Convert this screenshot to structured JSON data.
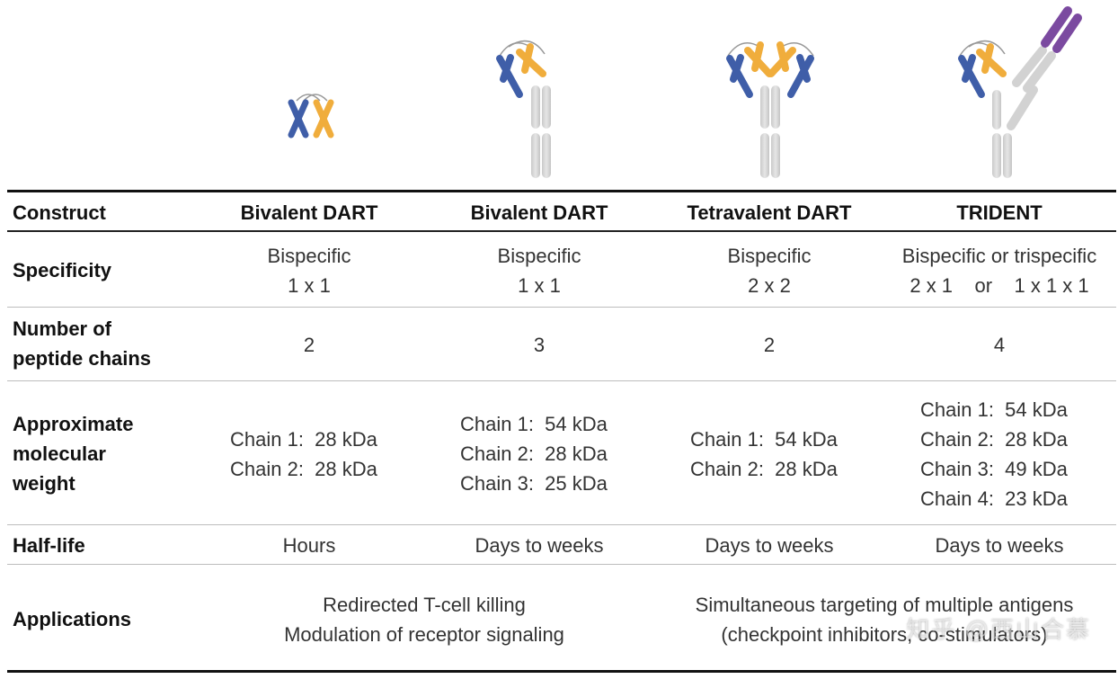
{
  "columns": {
    "row_header": "Construct",
    "col1": "Bivalent DART",
    "col2": "Bivalent DART",
    "col3": "Tetravalent DART",
    "col4": "TRIDENT"
  },
  "rows": {
    "specificity": {
      "label": "Specificity",
      "col1": [
        "Bispecific",
        "1 x 1"
      ],
      "col2": [
        "Bispecific",
        "1 x 1"
      ],
      "col3": [
        "Bispecific",
        "2 x 2"
      ],
      "col4": [
        "Bispecific or trispecific",
        "2 x 1    or    1 x 1 x 1"
      ]
    },
    "chains": {
      "label": [
        "Number of",
        "peptide chains"
      ],
      "col1": "2",
      "col2": "3",
      "col3": "2",
      "col4": "4"
    },
    "weight": {
      "label": [
        "Approximate",
        "molecular",
        "weight"
      ],
      "col1": [
        "Chain 1:  28 kDa",
        "Chain 2:  28 kDa"
      ],
      "col2": [
        "Chain 1:  54 kDa",
        "Chain 2:  28 kDa",
        "Chain 3:  25 kDa"
      ],
      "col3": [
        "Chain 1:  54 kDa",
        "Chain 2:  28 kDa"
      ],
      "col4": [
        "Chain 1:  54 kDa",
        "Chain 2:  28 kDa",
        "Chain 3:  49 kDa",
        "Chain 4:  23 kDa"
      ]
    },
    "halflife": {
      "label": "Half-life",
      "col1": "Hours",
      "col2": "Days to weeks",
      "col3": "Days to weeks",
      "col4": "Days to weeks"
    },
    "applications": {
      "label": "Applications",
      "left": [
        "Redirected T-cell killing",
        "Modulation of receptor signaling"
      ],
      "right": [
        "Simultaneous targeting of multiple antigens",
        "(checkpoint inhibitors, co-stimulators)"
      ]
    }
  },
  "watermark": "知乎 @西山合慕",
  "colors": {
    "blue": "#3f5ea8",
    "orange": "#f0ad3c",
    "gray": "#d6d6d6",
    "purple": "#7b4aa0"
  }
}
